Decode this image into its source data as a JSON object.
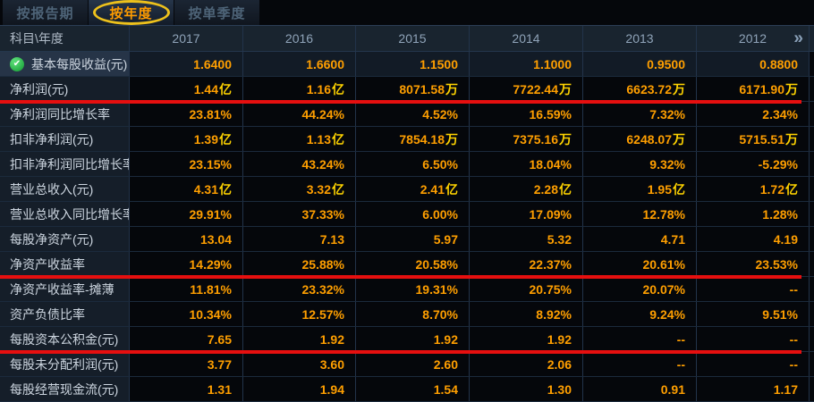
{
  "colors": {
    "background": "#05070b",
    "value_orange": "#ff9f00",
    "unit_yellow": "#ffd400",
    "underline_red": "#e60f0f",
    "active_tab_text": "#ff9c00",
    "highlight_ellipse": "#edc11c",
    "check_green": "#27ae46"
  },
  "tabs": [
    {
      "label": "按报告期",
      "active": false
    },
    {
      "label": "按年度",
      "active": true
    },
    {
      "label": "按单季度",
      "active": false
    }
  ],
  "table": {
    "corner_label": "科目\\年度",
    "years": [
      "2017",
      "2016",
      "2015",
      "2014",
      "2013",
      "2012"
    ],
    "more_icon": "»",
    "rows": [
      {
        "label": "基本每股收益(元)",
        "checked": true,
        "highlight": true,
        "values": [
          "1.6400",
          "1.6600",
          "1.1500",
          "1.1000",
          "0.9500",
          "0.8800"
        ]
      },
      {
        "label": "净利润(元)",
        "underline": true,
        "values": [
          "1.44亿",
          "1.16亿",
          "8071.58万",
          "7722.44万",
          "6623.72万",
          "6171.90万"
        ]
      },
      {
        "label": "净利润同比增长率",
        "values": [
          "23.81%",
          "44.24%",
          "4.52%",
          "16.59%",
          "7.32%",
          "2.34%"
        ]
      },
      {
        "label": "扣非净利润(元)",
        "values": [
          "1.39亿",
          "1.13亿",
          "7854.18万",
          "7375.16万",
          "6248.07万",
          "5715.51万"
        ]
      },
      {
        "label": "扣非净利润同比增长率",
        "values": [
          "23.15%",
          "43.24%",
          "6.50%",
          "18.04%",
          "9.32%",
          "-5.29%"
        ]
      },
      {
        "label": "营业总收入(元)",
        "values": [
          "4.31亿",
          "3.32亿",
          "2.41亿",
          "2.28亿",
          "1.95亿",
          "1.72亿"
        ]
      },
      {
        "label": "营业总收入同比增长率",
        "values": [
          "29.91%",
          "37.33%",
          "6.00%",
          "17.09%",
          "12.78%",
          "1.28%"
        ]
      },
      {
        "label": "每股净资产(元)",
        "values": [
          "13.04",
          "7.13",
          "5.97",
          "5.32",
          "4.71",
          "4.19"
        ]
      },
      {
        "label": "净资产收益率",
        "underline": true,
        "values": [
          "14.29%",
          "25.88%",
          "20.58%",
          "22.37%",
          "20.61%",
          "23.53%"
        ]
      },
      {
        "label": "净资产收益率-摊薄",
        "values": [
          "11.81%",
          "23.32%",
          "19.31%",
          "20.75%",
          "20.07%",
          "--"
        ]
      },
      {
        "label": "资产负债比率",
        "values": [
          "10.34%",
          "12.57%",
          "8.70%",
          "8.92%",
          "9.24%",
          "9.51%"
        ]
      },
      {
        "label": "每股资本公积金(元)",
        "underline": true,
        "values": [
          "7.65",
          "1.92",
          "1.92",
          "1.92",
          "--",
          "--"
        ]
      },
      {
        "label": "每股未分配利润(元)",
        "values": [
          "3.77",
          "3.60",
          "2.60",
          "2.06",
          "--",
          "--"
        ]
      },
      {
        "label": "每股经营现金流(元)",
        "values": [
          "1.31",
          "1.94",
          "1.54",
          "1.30",
          "0.91",
          "1.17"
        ]
      }
    ]
  }
}
